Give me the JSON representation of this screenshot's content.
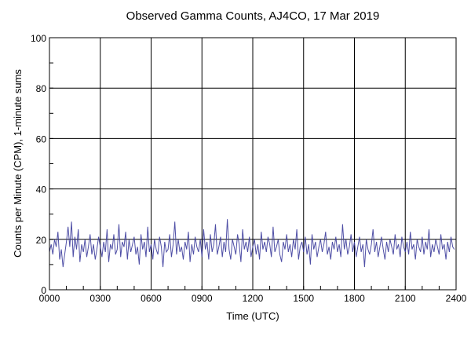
{
  "chart_data": {
    "type": "line",
    "title": "Observed Gamma Counts, AJ4CO, 17 Mar 2019",
    "xlabel": "Time (UTC)",
    "ylabel": "Counts per Minute (CPM), 1-minute sums",
    "xlim": [
      0,
      24
    ],
    "ylim": [
      0,
      100
    ],
    "x_ticks": [
      0,
      3,
      6,
      9,
      12,
      15,
      18,
      21,
      24
    ],
    "x_tick_labels": [
      "0000",
      "0300",
      "0600",
      "0900",
      "1200",
      "1500",
      "1800",
      "2100",
      "2400"
    ],
    "y_ticks": [
      0,
      20,
      40,
      60,
      80,
      100
    ],
    "y_tick_labels": [
      "0",
      "20",
      "40",
      "60",
      "80",
      "100"
    ],
    "grid": true,
    "line_color": "#3c3c9c",
    "series": [
      {
        "x_step_hours": 0.1,
        "values": [
          15,
          18,
          14,
          20,
          17,
          23,
          12,
          16,
          9,
          14,
          19,
          25,
          17,
          27,
          13,
          21,
          16,
          24,
          11,
          18,
          15,
          20,
          13,
          17,
          22,
          14,
          18,
          12,
          16,
          21,
          17,
          13,
          19,
          15,
          24,
          11,
          18,
          16,
          22,
          14,
          16,
          26,
          13,
          19,
          17,
          23,
          12,
          20,
          15,
          18,
          21,
          14,
          17,
          10,
          22,
          16,
          19,
          13,
          25,
          15,
          18,
          12,
          20,
          16,
          14,
          21,
          17,
          9,
          19,
          15,
          16,
          22,
          13,
          18,
          27,
          14,
          20,
          15,
          17,
          12,
          19,
          16,
          23,
          11,
          18,
          14,
          21,
          17,
          15,
          20,
          13,
          24,
          16,
          19,
          12,
          22,
          15,
          18,
          26,
          14,
          17,
          21,
          13,
          19,
          15,
          28,
          16,
          12,
          20,
          17,
          14,
          22,
          18,
          11,
          24,
          16,
          19,
          15,
          21,
          13,
          17,
          20,
          14,
          18,
          12,
          23,
          16,
          19,
          15,
          21,
          18,
          13,
          25,
          15,
          17,
          20,
          14,
          11,
          19,
          16,
          22,
          15,
          18,
          13,
          20,
          16,
          24,
          12,
          17,
          19,
          15,
          21,
          14,
          18,
          10,
          22,
          16,
          19,
          13,
          17,
          20,
          15,
          18,
          23,
          14,
          17,
          12,
          19,
          16,
          21,
          15,
          18,
          13,
          26,
          16,
          20,
          14,
          17,
          22,
          15,
          19,
          13,
          17,
          21,
          15,
          18,
          9,
          20,
          16,
          14,
          18,
          24,
          15,
          19,
          13,
          17,
          21,
          16,
          12,
          19,
          15,
          20,
          17,
          14,
          22,
          16,
          18,
          13,
          21,
          17,
          15,
          19,
          14,
          23,
          16,
          18,
          12,
          20,
          17,
          15,
          21,
          14,
          19,
          16,
          24,
          13,
          18,
          15,
          20,
          17,
          14,
          22,
          16,
          18,
          12,
          19,
          15,
          21,
          17,
          16
        ]
      }
    ]
  }
}
